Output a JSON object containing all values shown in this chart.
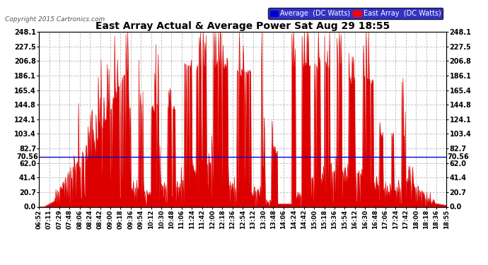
{
  "title": "East Array Actual & Average Power Sat Aug 29 18:55",
  "copyright": "Copyright 2015 Cartronics.com",
  "average_value": 70.56,
  "y_max": 248.1,
  "y_ticks": [
    0.0,
    20.7,
    41.4,
    62.0,
    82.7,
    103.4,
    124.1,
    144.8,
    165.4,
    186.1,
    206.8,
    227.5,
    248.1
  ],
  "legend_avg_label": "Average  (DC Watts)",
  "legend_east_label": "East Array  (DC Watts)",
  "background_color": "#ffffff",
  "fill_color": "#dd0000",
  "avg_line_color": "#0000cc",
  "grid_color": "#bbbbbb",
  "x_tick_labels": [
    "06:52",
    "07:11",
    "07:29",
    "07:48",
    "08:06",
    "08:24",
    "08:42",
    "09:00",
    "09:18",
    "09:36",
    "09:54",
    "10:12",
    "10:30",
    "10:48",
    "11:06",
    "11:24",
    "11:42",
    "12:00",
    "12:18",
    "12:36",
    "12:54",
    "13:12",
    "13:30",
    "13:48",
    "14:06",
    "14:24",
    "14:42",
    "15:00",
    "15:18",
    "15:36",
    "15:54",
    "16:12",
    "16:30",
    "16:48",
    "17:06",
    "17:24",
    "17:42",
    "18:00",
    "18:18",
    "18:36",
    "18:55"
  ]
}
